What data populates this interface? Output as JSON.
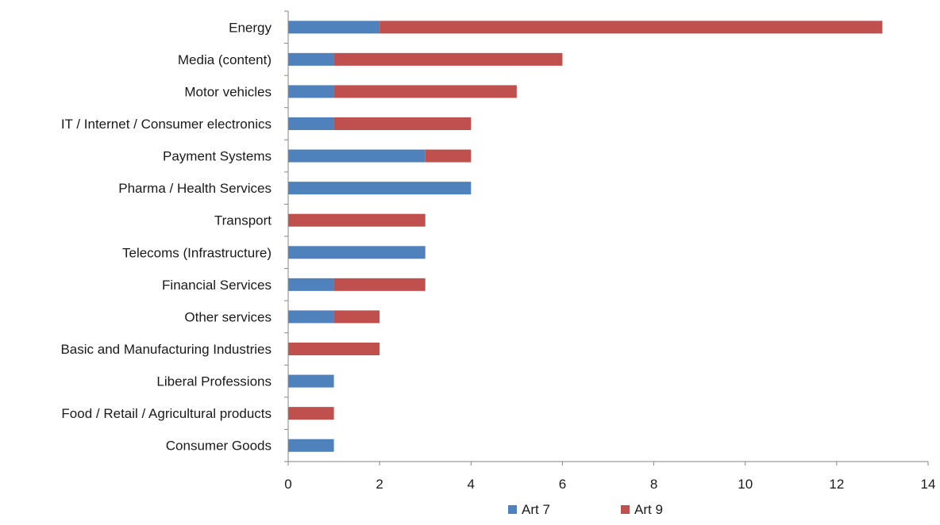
{
  "chart_data": {
    "type": "bar",
    "orientation": "horizontal",
    "stacked": true,
    "categories": [
      "Energy",
      "Media (content)",
      "Motor vehicles",
      "IT / Internet / Consumer electronics",
      "Payment Systems",
      "Pharma / Health Services",
      "Transport",
      "Telecoms (Infrastructure)",
      "Financial Services",
      "Other services",
      "Basic and Manufacturing Industries",
      "Liberal Professions",
      "Food / Retail / Agricultural products",
      "Consumer Goods"
    ],
    "series": [
      {
        "name": "Art 7",
        "color": "#4f81bd",
        "values": [
          2,
          1,
          1,
          1,
          3,
          4,
          0,
          3,
          1,
          1,
          0,
          1,
          0,
          1
        ]
      },
      {
        "name": "Art 9",
        "color": "#c0504d",
        "values": [
          11,
          5,
          4,
          3,
          1,
          0,
          3,
          0,
          2,
          1,
          2,
          0,
          1,
          0
        ]
      }
    ],
    "xlim": [
      0,
      14
    ],
    "xticks": [
      0,
      2,
      4,
      6,
      8,
      10,
      12,
      14
    ],
    "title": "",
    "xlabel": "",
    "ylabel": "",
    "grid": false,
    "legend_position": "bottom"
  }
}
